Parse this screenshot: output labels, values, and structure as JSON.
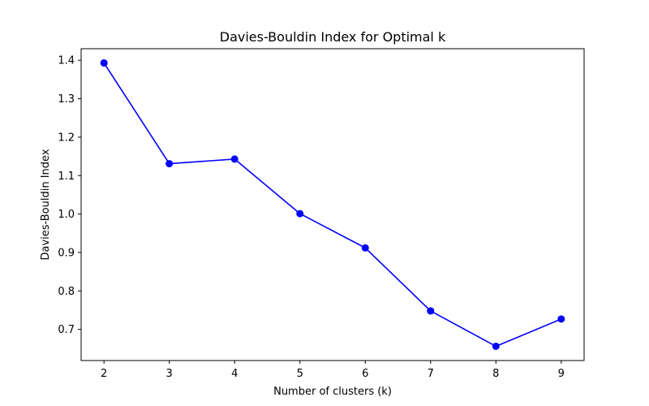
{
  "chart_data": {
    "type": "line",
    "title": "Davies-Bouldin Index for Optimal k",
    "xlabel": "Number of clusters (k)",
    "ylabel": "Davies-Bouldin Index",
    "x": [
      2,
      3,
      4,
      5,
      6,
      7,
      8,
      9
    ],
    "series": [
      {
        "values": [
          1.393,
          1.131,
          1.143,
          1.001,
          0.912,
          0.748,
          0.656,
          0.727
        ],
        "color": "#0000ff",
        "marker": "circle"
      }
    ],
    "xticks": [
      "2",
      "3",
      "4",
      "5",
      "6",
      "7",
      "8",
      "9"
    ],
    "yticks": [
      "0.7",
      "0.8",
      "0.9",
      "1.0",
      "1.1",
      "1.2",
      "1.3",
      "1.4"
    ],
    "xlim": [
      1.65,
      9.35
    ],
    "ylim": [
      0.619,
      1.43
    ],
    "grid": false,
    "legend": "none"
  }
}
